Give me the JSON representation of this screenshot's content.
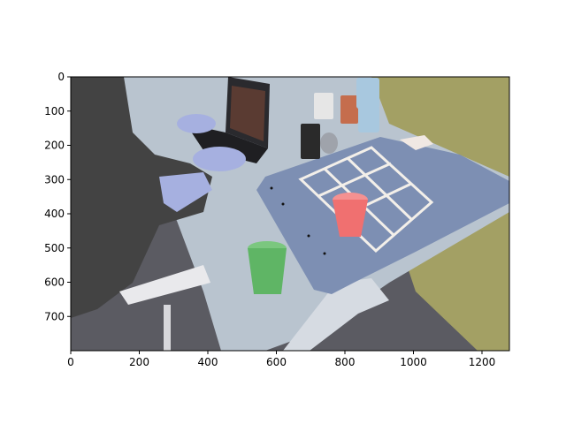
{
  "figure": {
    "x_axis": {
      "range": [
        0,
        1280
      ],
      "ticks": [
        0,
        200,
        400,
        600,
        800,
        1000,
        1200
      ]
    },
    "y_axis": {
      "range": [
        0,
        800
      ],
      "inverted": true,
      "ticks": [
        0,
        100,
        200,
        300,
        400,
        500,
        600,
        700
      ]
    }
  },
  "scene": {
    "description_items": [
      "laptop",
      "typing-hands",
      "desk",
      "blue-mat",
      "tic-tac-toe-grid",
      "red-cup",
      "green-cup",
      "paper-cups",
      "chair"
    ],
    "colors": {
      "mat": "#7d8fb3",
      "desk": "#b9c4cf",
      "wall": "#a3a064",
      "red_cup": "#f07070",
      "green_cup": "#5fb565",
      "grid_lines": "#f3efe9",
      "person": "#434343",
      "hands": "#a6b0e0"
    }
  }
}
